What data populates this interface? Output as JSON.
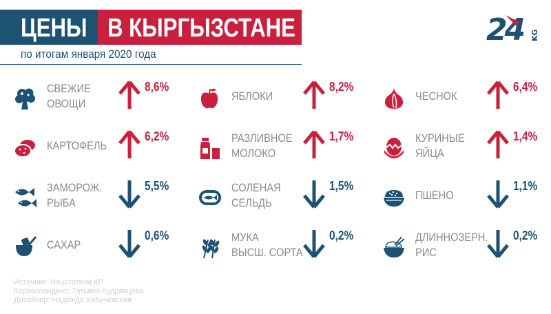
{
  "header": {
    "title_left": "ЦЕНЫ",
    "title_right": "В КЫРГЫЗСТАНЕ",
    "subtitle": "по итогам января 2020 года",
    "logo_text": "24",
    "logo_suffix": "KG"
  },
  "colors": {
    "red": "#c8203d",
    "blue": "#1d5273",
    "gray": "#8a8a8a"
  },
  "items": [
    {
      "icon": "broccoli-icon",
      "label1": "СВЕЖИЕ",
      "label2": "ОВОЩИ",
      "trend": "up",
      "value": "8,6%"
    },
    {
      "icon": "apple-icon",
      "label1": "ЯБЛОКИ",
      "label2": "",
      "trend": "up",
      "value": "8,2%"
    },
    {
      "icon": "garlic-icon",
      "label1": "ЧЕСНОК",
      "label2": "",
      "trend": "up",
      "value": "6,4%"
    },
    {
      "icon": "potato-icon",
      "label1": "КАРТОФЕЛЬ",
      "label2": "",
      "trend": "up",
      "value": "6,2%"
    },
    {
      "icon": "milk-icon",
      "label1": "РАЗЛИВНОЕ",
      "label2": "МОЛОКО",
      "trend": "up",
      "value": "1,7%"
    },
    {
      "icon": "eggs-icon",
      "label1": "КУРИНЫЕ",
      "label2": "ЯЙЦА",
      "trend": "up",
      "value": "1,4%"
    },
    {
      "icon": "fish-icon",
      "label1": "ЗАМОРОЖ.",
      "label2": "РЫБА",
      "trend": "down",
      "value": "5,5%"
    },
    {
      "icon": "herring-can-icon",
      "label1": "СОЛЕНАЯ",
      "label2": "СЕЛЬДЬ",
      "trend": "down",
      "value": "1,5%"
    },
    {
      "icon": "millet-bowl-icon",
      "label1": "ПШЕНО",
      "label2": "",
      "trend": "down",
      "value": "1,1%"
    },
    {
      "icon": "sugar-icon",
      "label1": "САХАР",
      "label2": "",
      "trend": "down",
      "value": "0,6%"
    },
    {
      "icon": "wheat-icon",
      "label1": "МУКА",
      "label2": "ВЫСШ. СОРТА",
      "trend": "down",
      "value": "0,2%"
    },
    {
      "icon": "rice-bowl-icon",
      "label1": "ДЛИННОЗЕРН.",
      "label2": "РИС",
      "trend": "down",
      "value": "0,2%"
    }
  ],
  "credits": {
    "source": "Источник: Нацстатком КР",
    "correspondent": "Корреспондент: Татьяна Кудрявцева",
    "designer": "Дизайнер: Надежда Хабичевская"
  }
}
